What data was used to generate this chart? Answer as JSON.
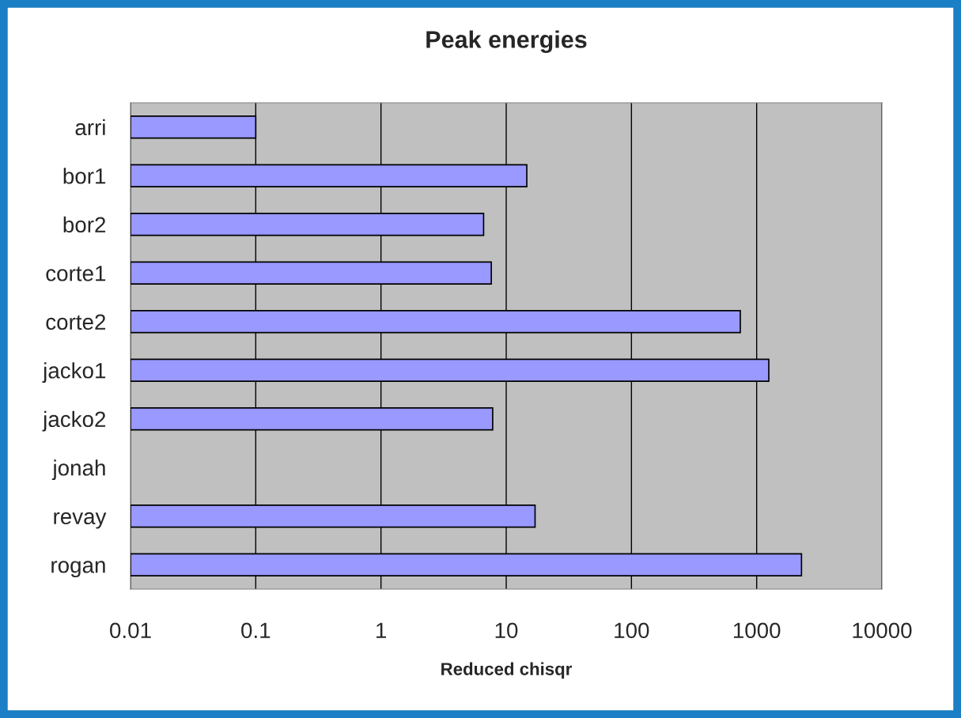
{
  "chart_data": {
    "type": "bar",
    "orientation": "horizontal",
    "title": "Peak energies",
    "xlabel": "Reduced chisqr",
    "categories": [
      "arri",
      "bor1",
      "bor2",
      "corte1",
      "corte2",
      "jacko1",
      "jacko2",
      "jonah",
      "revay",
      "rogan"
    ],
    "values": [
      0.1,
      14.6,
      6.6,
      7.6,
      740,
      1250,
      7.8,
      null,
      17,
      2280
    ],
    "color": "#9999ff",
    "log": "x",
    "xlim": [
      0.01,
      10000
    ],
    "xticks": [
      0.01,
      0.1,
      1,
      10,
      100,
      1000,
      10000
    ],
    "grid": "x"
  }
}
